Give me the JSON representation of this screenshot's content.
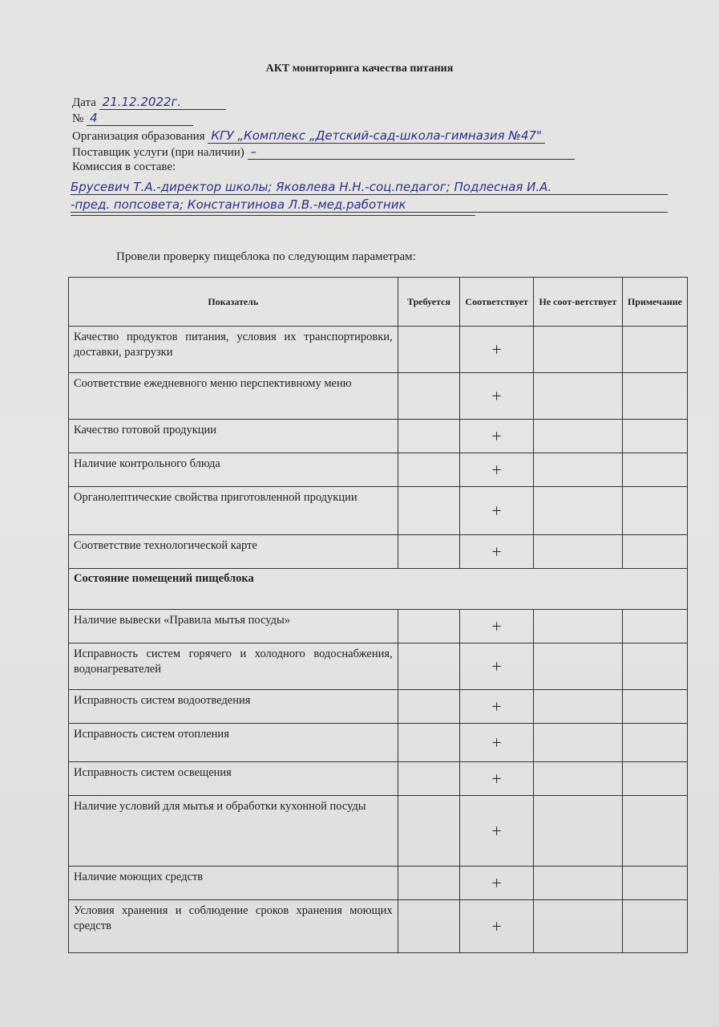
{
  "title": "АКТ мониторинга качества питания",
  "fields": {
    "date_label": "Дата",
    "date_value": "21.12.2022г.",
    "number_label": "№",
    "number_value": "4",
    "org_label": "Организация образования",
    "org_value": "КГУ „Комплекс „Детский-сад-школа-гимназия №47\"",
    "supplier_label": "Поставщик услуги (при наличии)",
    "supplier_value": "–",
    "commission_label": "Комиссия в составе:",
    "commission_line1": "Брусевич Т.А.-директор школы; Яковлева Н.Н.-соц.педагог; Подлесная И.А.",
    "commission_line2": "-пред. попсовета; Константинова Л.В.-мед.работник"
  },
  "intro": "Провели проверку пищеблока по следующим параметрам:",
  "table": {
    "headers": [
      "Показатель",
      "Требуется",
      "Соответствует",
      "Не соот-ветствует",
      "Примечание"
    ],
    "rows": [
      {
        "label": "Качество продуктов питания, условия их транспортировки, доставки, разгрузки",
        "mark": "+"
      },
      {
        "label": "Соответствие ежедневного меню перспективному меню",
        "mark": "+"
      },
      {
        "label": "Качество готовой продукции",
        "mark": "+"
      },
      {
        "label": "Наличие контрольного блюда",
        "mark": "+"
      },
      {
        "label": "Органолептические свойства приготовленной продукции",
        "mark": "+"
      },
      {
        "label": "Соответствие технологической карте",
        "mark": "+"
      }
    ],
    "section": "Состояние помещений пищеблока",
    "rows2": [
      {
        "label": "Наличие вывески «Правила мытья посуды»",
        "mark": "+"
      },
      {
        "label": "Исправность систем горячего и холодного водоснабжения, водонагревателей",
        "mark": "+"
      },
      {
        "label": "Исправность систем водоотведения",
        "mark": "+"
      },
      {
        "label": "Исправность систем отопления",
        "mark": "+"
      },
      {
        "label": "Исправность систем освещения",
        "mark": "+"
      },
      {
        "label": "Наличие условий для мытья и обработки кухонной посуды",
        "mark": "+"
      },
      {
        "label": "Наличие моющих средств",
        "mark": "+"
      },
      {
        "label": "Условия хранения и соблюдение сроков хранения моющих средств",
        "mark": "+"
      }
    ]
  }
}
